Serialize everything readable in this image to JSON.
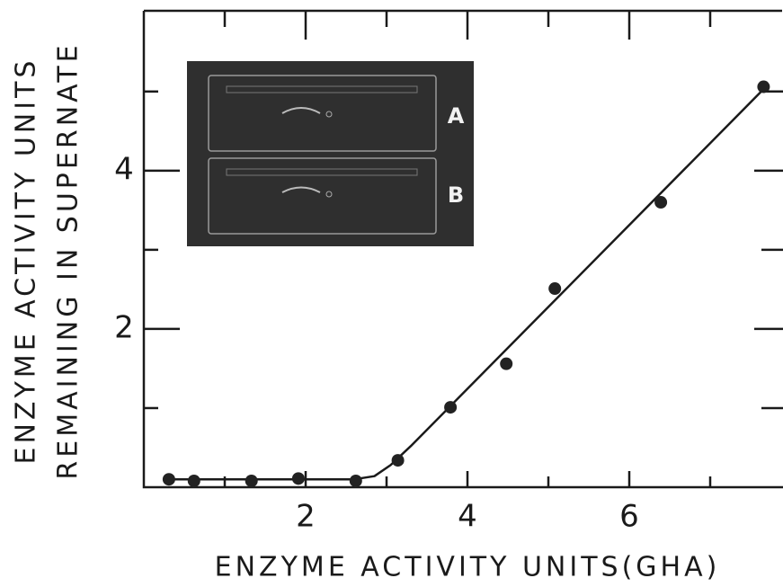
{
  "chart_data": {
    "type": "scatter",
    "x_label": "ENZYME ACTIVITY UNITS(GHA)",
    "y_label": [
      "ENZYME ACTIVITY UNITS",
      "REMAINING IN SUPERNATE"
    ],
    "x": [
      0.31,
      0.62,
      1.33,
      1.91,
      2.62,
      3.14,
      3.79,
      4.48,
      5.08,
      6.39,
      7.66
    ],
    "values": [
      0.1,
      0.08,
      0.08,
      0.11,
      0.08,
      0.34,
      1.01,
      1.56,
      2.51,
      3.6,
      5.06
    ],
    "color": "#222222",
    "fit": {
      "x": [
        0.31,
        2.6,
        2.85,
        3.05,
        3.3,
        7.66
      ],
      "y": [
        0.1,
        0.1,
        0.14,
        0.28,
        0.52,
        5.03
      ]
    },
    "xlim": [
      0,
      7.9
    ],
    "ylim": [
      0,
      6.02
    ],
    "xticks": [
      2,
      4,
      6
    ],
    "yticks": [
      2,
      4
    ],
    "minor_xticks": [
      1,
      3,
      5,
      7
    ],
    "minor_yticks": [
      1,
      3,
      5
    ],
    "inset_labels": [
      "A",
      "B"
    ]
  }
}
